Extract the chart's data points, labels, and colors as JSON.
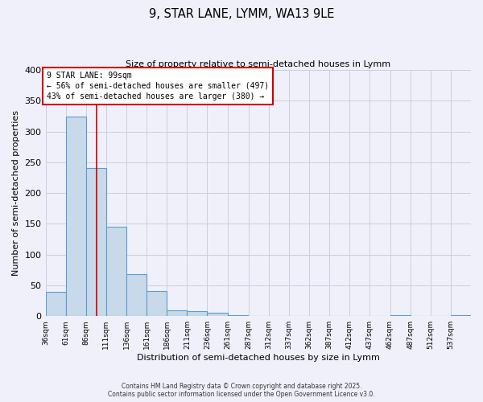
{
  "title": "9, STAR LANE, LYMM, WA13 9LE",
  "subtitle": "Size of property relative to semi-detached houses in Lymm",
  "xlabel": "Distribution of semi-detached houses by size in Lymm",
  "ylabel": "Number of semi-detached properties",
  "bar_values": [
    40,
    325,
    241,
    146,
    68,
    41,
    10,
    8,
    6,
    2,
    0,
    0,
    0,
    0,
    0,
    0,
    0,
    1,
    0,
    0,
    1
  ],
  "bin_labels": [
    "36sqm",
    "61sqm",
    "86sqm",
    "111sqm",
    "136sqm",
    "161sqm",
    "186sqm",
    "211sqm",
    "236sqm",
    "261sqm",
    "287sqm",
    "312sqm",
    "337sqm",
    "362sqm",
    "387sqm",
    "412sqm",
    "437sqm",
    "462sqm",
    "487sqm",
    "512sqm",
    "537sqm"
  ],
  "bin_starts": [
    36,
    61,
    86,
    111,
    136,
    161,
    186,
    211,
    236,
    261,
    287,
    312,
    337,
    362,
    387,
    412,
    437,
    462,
    487,
    512,
    537
  ],
  "bin_width": 25,
  "bar_color": "#c8daea",
  "bar_edge_color": "#5b9bd5",
  "vline_x": 99,
  "vline_color": "#cc0000",
  "ylim": [
    0,
    400
  ],
  "yticks": [
    0,
    50,
    100,
    150,
    200,
    250,
    300,
    350,
    400
  ],
  "xlim_left": 36,
  "xlim_right": 562,
  "annotation_title": "9 STAR LANE: 99sqm",
  "annotation_line1": "← 56% of semi-detached houses are smaller (497)",
  "annotation_line2": "43% of semi-detached houses are larger (380) →",
  "annotation_box_color": "#cc0000",
  "footer1": "Contains HM Land Registry data © Crown copyright and database right 2025.",
  "footer2": "Contains public sector information licensed under the Open Government Licence v3.0.",
  "bg_color": "#f0f0fa",
  "grid_color": "#c8d0e0"
}
